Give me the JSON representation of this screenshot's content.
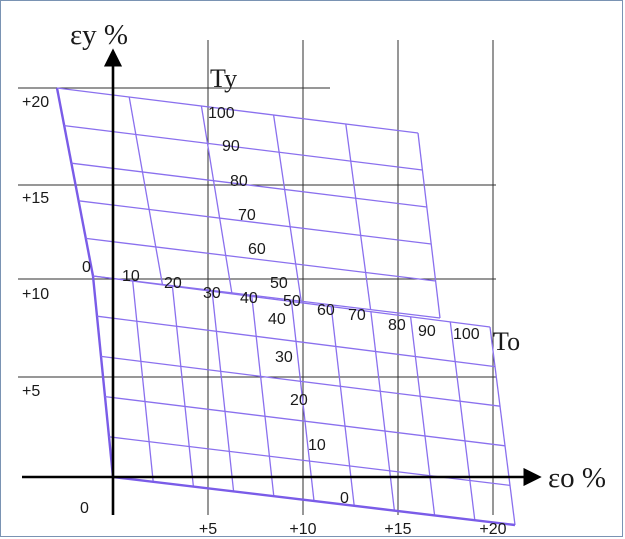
{
  "axes": {
    "y_label": "εy %",
    "x_label": "εo %",
    "origin_label": "0"
  },
  "x_ticks": [
    {
      "label": "+5",
      "value": 5
    },
    {
      "label": "+10",
      "value": 10
    },
    {
      "label": "+15",
      "value": 15
    },
    {
      "label": "+20",
      "value": 20
    }
  ],
  "y_ticks": [
    {
      "label": "+5",
      "value": 5
    },
    {
      "label": "+10",
      "value": 10
    },
    {
      "label": "+15",
      "value": 15
    },
    {
      "label": "+20",
      "value": 20
    }
  ],
  "net": {
    "ty_label": "Ty",
    "to_label": "To",
    "ty_values": [
      "0",
      "10",
      "20",
      "30",
      "40",
      "50",
      "60",
      "70",
      "80",
      "90",
      "100"
    ],
    "to_values": [
      "0",
      "10",
      "20",
      "30",
      "40",
      "50",
      "60",
      "70",
      "80",
      "90",
      "100"
    ]
  },
  "colors": {
    "net": "#8a70ee",
    "net_edge": "#7a5ce8",
    "grid": "#2f2f2f",
    "axis": "#000000",
    "frame": "#7a93b3"
  }
}
